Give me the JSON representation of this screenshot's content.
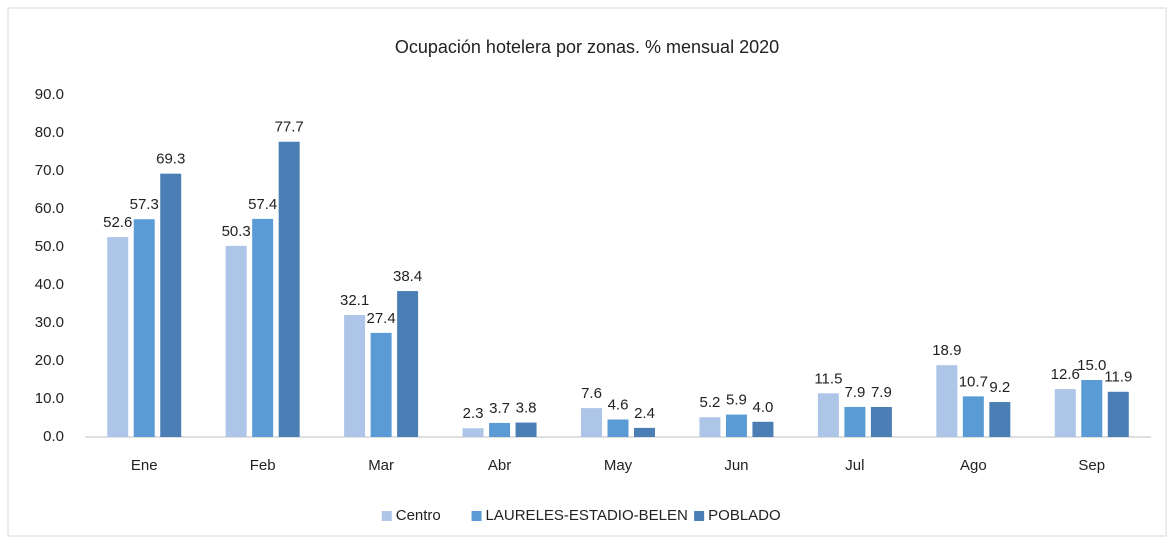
{
  "chart_data": {
    "type": "bar",
    "title": "Ocupación hotelera por zonas. % mensual 2020",
    "categories": [
      "Ene",
      "Feb",
      "Mar",
      "Abr",
      "May",
      "Jun",
      "Jul",
      "Ago",
      "Sep"
    ],
    "series": [
      {
        "name": "Centro",
        "color": "#adc6e8",
        "values": [
          52.6,
          50.3,
          32.1,
          2.3,
          7.6,
          5.2,
          11.5,
          18.9,
          12.6
        ],
        "value_labels": [
          "52.6",
          "50.3",
          "32.1",
          "2.3",
          "7.6",
          "5.2",
          "11.5",
          "18.9",
          "12.6"
        ]
      },
      {
        "name": "LAURELES-ESTADIO-BELEN",
        "color": "#5b9bd5",
        "values": [
          57.3,
          57.4,
          27.4,
          3.7,
          4.6,
          5.9,
          7.9,
          10.7,
          15.0
        ],
        "value_labels": [
          "57.3",
          "57.4",
          "27.4",
          "3.7",
          "4.6",
          "5.9",
          "7.9",
          "10.7",
          "15.0"
        ]
      },
      {
        "name": "POBLADO",
        "color": "#4a7eb4",
        "values": [
          69.3,
          77.7,
          38.4,
          3.8,
          2.4,
          4.0,
          7.9,
          9.2,
          11.9
        ],
        "value_labels": [
          "69.3",
          "77.7",
          "38.4",
          "3.8",
          "2.4",
          "4.0",
          "7.9",
          "9.2",
          "11.9"
        ]
      }
    ],
    "ylim": [
      0,
      90
    ],
    "yticks": [
      {
        "value": 0,
        "label": "0.0"
      },
      {
        "value": 10,
        "label": "10.0"
      },
      {
        "value": 20,
        "label": "20.0"
      },
      {
        "value": 30,
        "label": "30.0"
      },
      {
        "value": 40,
        "label": "40.0"
      },
      {
        "value": 50,
        "label": "50.0"
      },
      {
        "value": 60,
        "label": "60.0"
      },
      {
        "value": 70,
        "label": "70.0"
      },
      {
        "value": 80,
        "label": "80.0"
      },
      {
        "value": 90,
        "label": "90.0"
      }
    ],
    "grid": false,
    "legend": "bottom"
  }
}
